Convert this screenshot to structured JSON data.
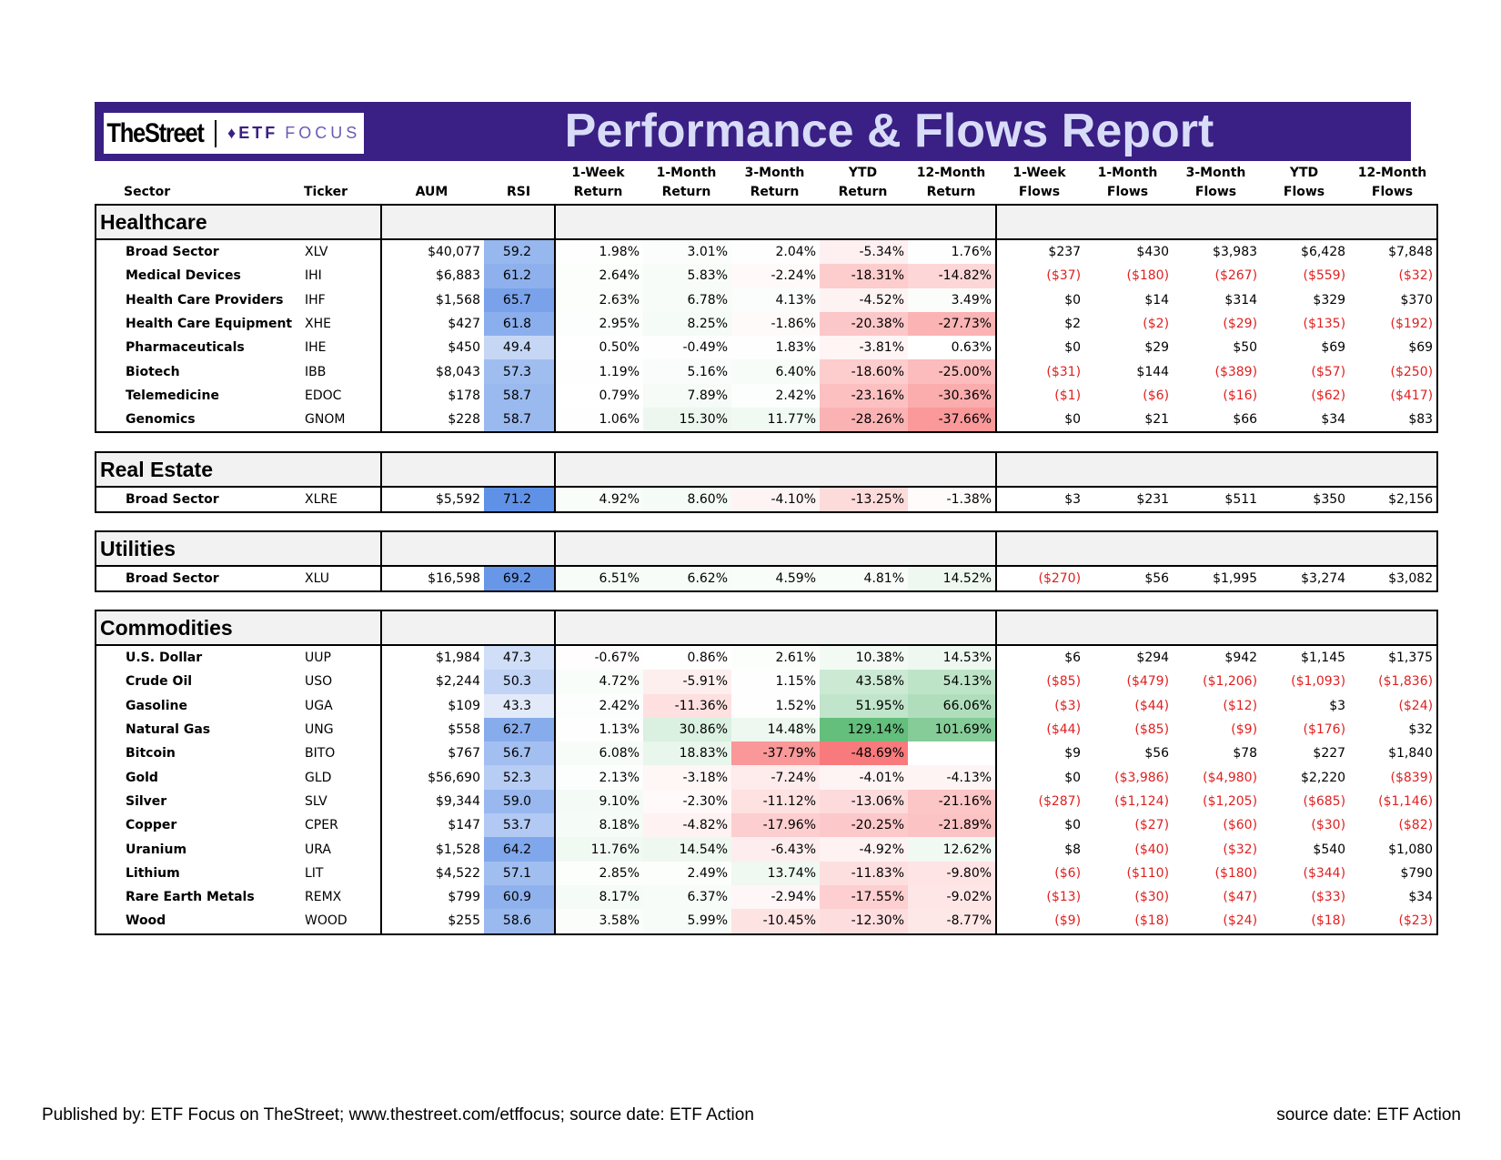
{
  "header": {
    "logo_thestreet": "TheStreet",
    "logo_etf": "ETF",
    "logo_focus": "FOCUS",
    "title": "Performance & Flows Report"
  },
  "columns": [
    [
      "",
      "Sector"
    ],
    [
      "",
      "Ticker"
    ],
    [
      "",
      "AUM"
    ],
    [
      "",
      "RSI"
    ],
    [
      "1-Week",
      "Return"
    ],
    [
      "1-Month",
      "Return"
    ],
    [
      "3-Month",
      "Return"
    ],
    [
      "YTD",
      "Return"
    ],
    [
      "12-Month",
      "Return"
    ],
    [
      "1-Week",
      "Flows"
    ],
    [
      "1-Month",
      "Flows"
    ],
    [
      "3-Month",
      "Flows"
    ],
    [
      "YTD",
      "Flows"
    ],
    [
      "12-Month",
      "Flows"
    ]
  ],
  "groups": [
    {
      "name": "Healthcare",
      "rows": [
        [
          "Broad Sector",
          "XLV",
          "$40,077",
          "59.2",
          "1.98%",
          "3.01%",
          "2.04%",
          "-5.34%",
          "1.76%",
          "$237",
          "$430",
          "$3,983",
          "$6,428",
          "$7,848"
        ],
        [
          "Medical Devices",
          "IHI",
          "$6,883",
          "61.2",
          "2.64%",
          "5.83%",
          "-2.24%",
          "-18.31%",
          "-14.82%",
          "($37)",
          "($180)",
          "($267)",
          "($559)",
          "($32)"
        ],
        [
          "Health Care Providers",
          "IHF",
          "$1,568",
          "65.7",
          "2.63%",
          "6.78%",
          "4.13%",
          "-4.52%",
          "3.49%",
          "$0",
          "$14",
          "$314",
          "$329",
          "$370"
        ],
        [
          "Health Care Equipment",
          "XHE",
          "$427",
          "61.8",
          "2.95%",
          "8.25%",
          "-1.86%",
          "-20.38%",
          "-27.73%",
          "$2",
          "($2)",
          "($29)",
          "($135)",
          "($192)"
        ],
        [
          "Pharmaceuticals",
          "IHE",
          "$450",
          "49.4",
          "0.50%",
          "-0.49%",
          "1.83%",
          "-3.81%",
          "0.63%",
          "$0",
          "$29",
          "$50",
          "$69",
          "$69"
        ],
        [
          "Biotech",
          "IBB",
          "$8,043",
          "57.3",
          "1.19%",
          "5.16%",
          "6.40%",
          "-18.60%",
          "-25.00%",
          "($31)",
          "$144",
          "($389)",
          "($57)",
          "($250)"
        ],
        [
          "Telemedicine",
          "EDOC",
          "$178",
          "58.7",
          "0.79%",
          "7.89%",
          "2.42%",
          "-23.16%",
          "-30.36%",
          "($1)",
          "($6)",
          "($16)",
          "($62)",
          "($417)"
        ],
        [
          "Genomics",
          "GNOM",
          "$228",
          "58.7",
          "1.06%",
          "15.30%",
          "11.77%",
          "-28.26%",
          "-37.66%",
          "$0",
          "$21",
          "$66",
          "$34",
          "$83"
        ]
      ]
    },
    {
      "name": "Real Estate",
      "rows": [
        [
          "Broad Sector",
          "XLRE",
          "$5,592",
          "71.2",
          "4.92%",
          "8.60%",
          "-4.10%",
          "-13.25%",
          "-1.38%",
          "$3",
          "$231",
          "$511",
          "$350",
          "$2,156"
        ]
      ]
    },
    {
      "name": "Utilities",
      "rows": [
        [
          "Broad Sector",
          "XLU",
          "$16,598",
          "69.2",
          "6.51%",
          "6.62%",
          "4.59%",
          "4.81%",
          "14.52%",
          "($270)",
          "$56",
          "$1,995",
          "$3,274",
          "$3,082"
        ]
      ]
    },
    {
      "name": "Commodities",
      "rows": [
        [
          "U.S. Dollar",
          "UUP",
          "$1,984",
          "47.3",
          "-0.67%",
          "0.86%",
          "2.61%",
          "10.38%",
          "14.53%",
          "$6",
          "$294",
          "$942",
          "$1,145",
          "$1,375"
        ],
        [
          "Crude Oil",
          "USO",
          "$2,244",
          "50.3",
          "4.72%",
          "-5.91%",
          "1.15%",
          "43.58%",
          "54.13%",
          "($85)",
          "($479)",
          "($1,206)",
          "($1,093)",
          "($1,836)"
        ],
        [
          "Gasoline",
          "UGA",
          "$109",
          "43.3",
          "2.42%",
          "-11.36%",
          "1.52%",
          "51.95%",
          "66.06%",
          "($3)",
          "($44)",
          "($12)",
          "$3",
          "($24)"
        ],
        [
          "Natural Gas",
          "UNG",
          "$558",
          "62.7",
          "1.13%",
          "30.86%",
          "14.48%",
          "129.14%",
          "101.69%",
          "($44)",
          "($85)",
          "($9)",
          "($176)",
          "$32"
        ],
        [
          "Bitcoin",
          "BITO",
          "$767",
          "56.7",
          "6.08%",
          "18.83%",
          "-37.79%",
          "-48.69%",
          "",
          "$9",
          "$56",
          "$78",
          "$227",
          "$1,840"
        ],
        [
          "Gold",
          "GLD",
          "$56,690",
          "52.3",
          "2.13%",
          "-3.18%",
          "-7.24%",
          "-4.01%",
          "-4.13%",
          "$0",
          "($3,986)",
          "($4,980)",
          "$2,220",
          "($839)"
        ],
        [
          "Silver",
          "SLV",
          "$9,344",
          "59.0",
          "9.10%",
          "-2.30%",
          "-11.12%",
          "-13.06%",
          "-21.16%",
          "($287)",
          "($1,124)",
          "($1,205)",
          "($685)",
          "($1,146)"
        ],
        [
          "Copper",
          "CPER",
          "$147",
          "53.7",
          "8.18%",
          "-4.82%",
          "-17.96%",
          "-20.25%",
          "-21.89%",
          "$0",
          "($27)",
          "($60)",
          "($30)",
          "($82)"
        ],
        [
          "Uranium",
          "URA",
          "$1,528",
          "64.2",
          "11.76%",
          "14.54%",
          "-6.43%",
          "-4.92%",
          "12.62%",
          "$8",
          "($40)",
          "($32)",
          "$540",
          "$1,080"
        ],
        [
          "Lithium",
          "LIT",
          "$4,522",
          "57.1",
          "2.85%",
          "2.49%",
          "13.74%",
          "-11.83%",
          "-9.80%",
          "($6)",
          "($110)",
          "($180)",
          "($344)",
          "$790"
        ],
        [
          "Rare Earth Metals",
          "REMX",
          "$799",
          "60.9",
          "8.17%",
          "6.37%",
          "-2.94%",
          "-17.55%",
          "-9.02%",
          "($13)",
          "($30)",
          "($47)",
          "($33)",
          "$34"
        ],
        [
          "Wood",
          "WOOD",
          "$255",
          "58.6",
          "3.58%",
          "5.99%",
          "-10.45%",
          "-12.30%",
          "-8.77%",
          "($9)",
          "($18)",
          "($24)",
          "($18)",
          "($23)"
        ]
      ]
    }
  ],
  "colors": {
    "banner": "#3a1f85",
    "title_text": "#d8dcf7",
    "negative_flow": "#e02020",
    "positive_return": "#63be7b",
    "negative_return": "#f8696b",
    "rsi_high": "#5b8ee6"
  },
  "footer": {
    "left": "Published by: ETF Focus on TheStreet; www.thestreet.com/etffocus; source date: ETF Action",
    "right": "source date: ETF Action"
  }
}
